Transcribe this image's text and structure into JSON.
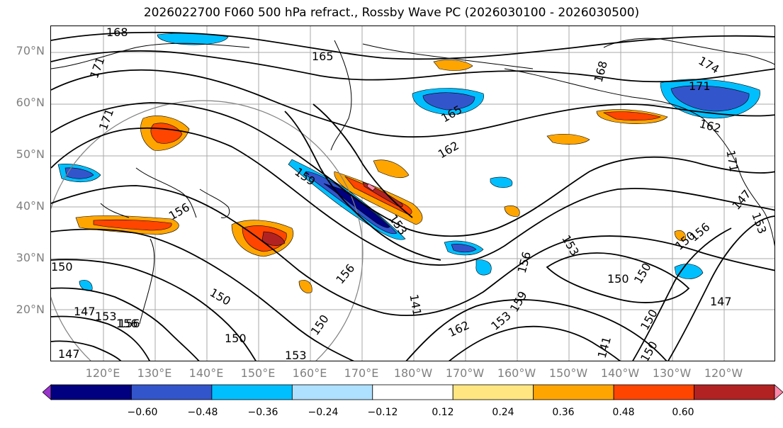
{
  "title": "2026022700 F060 500 hPa refract., Rossby Wave PC (2026030100 - 2026030500)",
  "lat_labels": [
    "70°N",
    "60°N",
    "50°N",
    "40°N",
    "30°N",
    "20°N"
  ],
  "lon_labels": [
    "120°E",
    "130°E",
    "140°E",
    "150°E",
    "160°E",
    "170°E",
    "180°W",
    "170°W",
    "160°W",
    "150°W",
    "140°W",
    "130°W",
    "120°W"
  ],
  "contour_labels": [
    "168",
    "165",
    "171",
    "171",
    "168",
    "174",
    "171",
    "165",
    "162",
    "162",
    "171",
    "156",
    "159",
    "153",
    "156",
    "150",
    "150",
    "156",
    "150",
    "147",
    "153",
    "156",
    "147",
    "150",
    "153",
    "150",
    "141",
    "156",
    "153",
    "162",
    "150",
    "150",
    "147",
    "141",
    "150",
    "159",
    "153",
    "147",
    "156",
    "150",
    "153"
  ],
  "colorbar": {
    "ticks": [
      "−0.60",
      "−0.48",
      "−0.36",
      "−0.24",
      "−0.12",
      "0.12",
      "0.24",
      "0.36",
      "0.48",
      "0.60"
    ],
    "colors": [
      "#9933cc",
      "#000080",
      "#3355cc",
      "#00bfff",
      "#aee0ff",
      "#ffffff",
      "#ffe680",
      "#ffa500",
      "#ff4500",
      "#b22222",
      "#ff88aa"
    ]
  }
}
